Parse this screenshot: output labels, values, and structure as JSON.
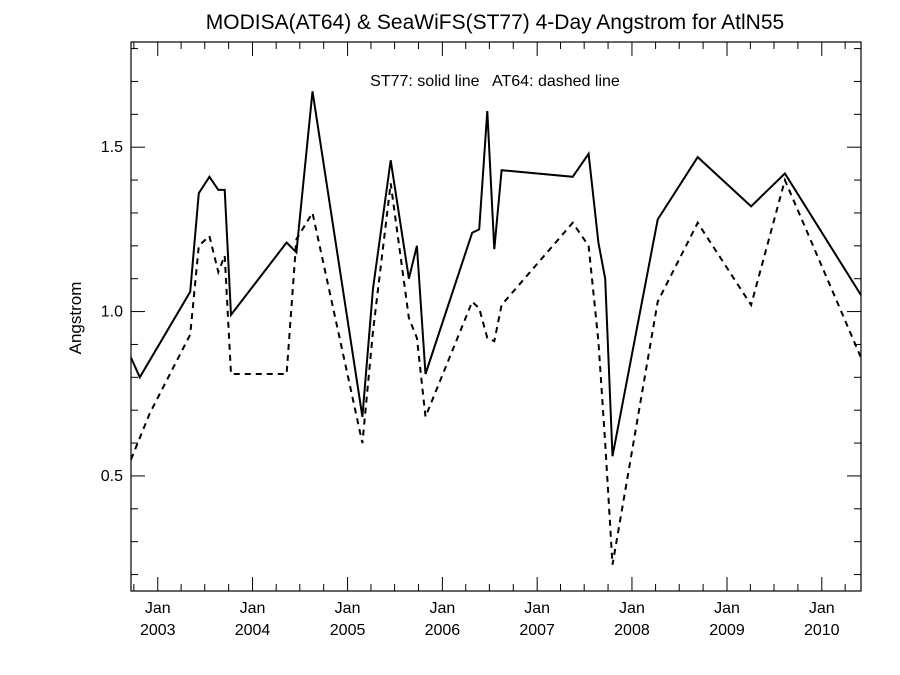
{
  "chart_data": {
    "type": "line",
    "title": "MODISA(AT64) & SeaWiFS(ST77) 4-Day Angstrom for AtlN55",
    "annotation": "ST77: solid line   AT64: dashed line",
    "ylabel": "Angstrom",
    "xlabel": "",
    "x_range": [
      "2002-09-20",
      "2010-06-01"
    ],
    "ylim": [
      0.15,
      1.82
    ],
    "y_ticks": [
      {
        "value": 0.5,
        "label": "0.5"
      },
      {
        "value": 1.0,
        "label": "1.0"
      },
      {
        "value": 1.5,
        "label": "1.5"
      }
    ],
    "x_ticks": [
      {
        "date": "2003-01-01",
        "month": "Jan",
        "year": "2003"
      },
      {
        "date": "2004-01-01",
        "month": "Jan",
        "year": "2004"
      },
      {
        "date": "2005-01-01",
        "month": "Jan",
        "year": "2005"
      },
      {
        "date": "2006-01-01",
        "month": "Jan",
        "year": "2006"
      },
      {
        "date": "2007-01-01",
        "month": "Jan",
        "year": "2007"
      },
      {
        "date": "2008-01-01",
        "month": "Jan",
        "year": "2008"
      },
      {
        "date": "2009-01-01",
        "month": "Jan",
        "year": "2009"
      },
      {
        "date": "2010-01-01",
        "month": "Jan",
        "year": "2010"
      }
    ],
    "grid": false,
    "series": [
      {
        "name": "ST77",
        "style": "solid",
        "color": "#000000",
        "points": [
          {
            "x": "2002-09-20",
            "y": 0.86
          },
          {
            "x": "2002-10-24",
            "y": 0.8
          },
          {
            "x": "2003-05-06",
            "y": 1.06
          },
          {
            "x": "2003-06-08",
            "y": 1.36
          },
          {
            "x": "2003-07-19",
            "y": 1.41
          },
          {
            "x": "2003-08-22",
            "y": 1.37
          },
          {
            "x": "2003-09-16",
            "y": 1.37
          },
          {
            "x": "2003-10-10",
            "y": 0.99
          },
          {
            "x": "2004-05-11",
            "y": 1.21
          },
          {
            "x": "2004-06-18",
            "y": 1.18
          },
          {
            "x": "2004-08-19",
            "y": 1.67
          },
          {
            "x": "2005-02-27",
            "y": 0.68
          },
          {
            "x": "2005-04-09",
            "y": 1.07
          },
          {
            "x": "2005-06-16",
            "y": 1.46
          },
          {
            "x": "2005-08-25",
            "y": 1.1
          },
          {
            "x": "2005-09-25",
            "y": 1.2
          },
          {
            "x": "2005-10-28",
            "y": 0.81
          },
          {
            "x": "2006-04-26",
            "y": 1.24
          },
          {
            "x": "2006-05-23",
            "y": 1.25
          },
          {
            "x": "2006-06-23",
            "y": 1.61
          },
          {
            "x": "2006-07-20",
            "y": 1.19
          },
          {
            "x": "2006-08-17",
            "y": 1.43
          },
          {
            "x": "2007-05-18",
            "y": 1.41
          },
          {
            "x": "2007-07-18",
            "y": 1.48
          },
          {
            "x": "2007-08-25",
            "y": 1.21
          },
          {
            "x": "2007-09-20",
            "y": 1.1
          },
          {
            "x": "2007-10-18",
            "y": 0.56
          },
          {
            "x": "2008-04-09",
            "y": 1.28
          },
          {
            "x": "2008-09-10",
            "y": 1.47
          },
          {
            "x": "2009-04-04",
            "y": 1.32
          },
          {
            "x": "2009-08-12",
            "y": 1.42
          },
          {
            "x": "2010-06-01",
            "y": 1.05
          }
        ]
      },
      {
        "name": "AT64",
        "style": "dashed",
        "color": "#000000",
        "points": [
          {
            "x": "2002-09-20",
            "y": 0.55
          },
          {
            "x": "2002-12-01",
            "y": 0.69
          },
          {
            "x": "2003-05-06",
            "y": 0.93
          },
          {
            "x": "2003-06-08",
            "y": 1.2
          },
          {
            "x": "2003-07-19",
            "y": 1.23
          },
          {
            "x": "2003-08-22",
            "y": 1.12
          },
          {
            "x": "2003-09-16",
            "y": 1.17
          },
          {
            "x": "2003-10-10",
            "y": 0.81
          },
          {
            "x": "2004-05-11",
            "y": 0.81
          },
          {
            "x": "2004-06-18",
            "y": 1.22
          },
          {
            "x": "2004-08-19",
            "y": 1.3
          },
          {
            "x": "2005-02-27",
            "y": 0.6
          },
          {
            "x": "2005-04-09",
            "y": 0.94
          },
          {
            "x": "2005-06-16",
            "y": 1.39
          },
          {
            "x": "2005-08-25",
            "y": 0.98
          },
          {
            "x": "2005-09-25",
            "y": 0.92
          },
          {
            "x": "2005-10-28",
            "y": 0.68
          },
          {
            "x": "2006-04-26",
            "y": 1.03
          },
          {
            "x": "2006-05-23",
            "y": 1.01
          },
          {
            "x": "2006-06-23",
            "y": 0.92
          },
          {
            "x": "2006-07-20",
            "y": 0.91
          },
          {
            "x": "2006-08-17",
            "y": 1.02
          },
          {
            "x": "2007-05-18",
            "y": 1.27
          },
          {
            "x": "2007-07-18",
            "y": 1.2
          },
          {
            "x": "2007-08-25",
            "y": 0.91
          },
          {
            "x": "2007-09-20",
            "y": 0.6
          },
          {
            "x": "2007-10-18",
            "y": 0.23
          },
          {
            "x": "2008-04-09",
            "y": 1.03
          },
          {
            "x": "2008-09-10",
            "y": 1.27
          },
          {
            "x": "2009-04-04",
            "y": 1.02
          },
          {
            "x": "2009-08-12",
            "y": 1.4
          },
          {
            "x": "2010-06-01",
            "y": 0.86
          }
        ]
      }
    ]
  }
}
